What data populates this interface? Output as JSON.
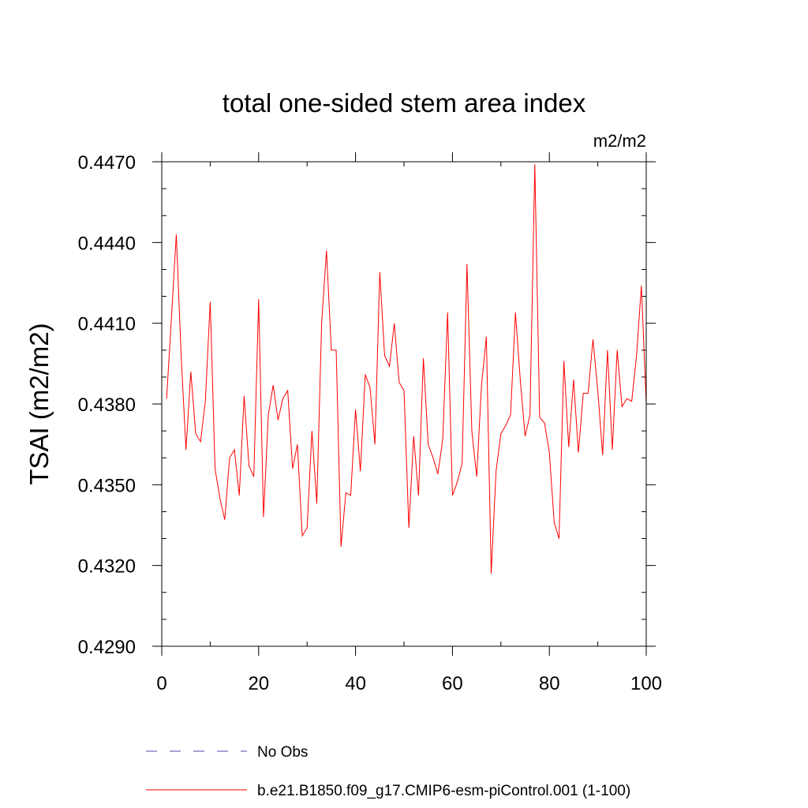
{
  "chart_data": {
    "type": "line",
    "title": "total one-sided stem area index",
    "units": "m2/m2",
    "ylabel": "TSAI  (m2/m2)",
    "xlabel": "",
    "xlim": [
      0,
      100
    ],
    "ylim": [
      0.429,
      0.447
    ],
    "xticks": [
      0,
      20,
      40,
      60,
      80,
      100
    ],
    "xtick_labels": [
      "0",
      "20",
      "40",
      "60",
      "80",
      "100"
    ],
    "yticks": [
      0.429,
      0.432,
      0.435,
      0.438,
      0.441,
      0.444,
      0.447
    ],
    "ytick_labels": [
      "0.4290",
      "0.4320",
      "0.4350",
      "0.4380",
      "0.4410",
      "0.4440",
      "0.4470"
    ],
    "series": [
      {
        "name": "b.e21.B1850.f09_g17.CMIP6-esm-piControl.001 (1-100)",
        "color": "#ff0000",
        "x": [
          1,
          2,
          3,
          4,
          5,
          6,
          7,
          8,
          9,
          10,
          11,
          12,
          13,
          14,
          15,
          16,
          17,
          18,
          19,
          20,
          21,
          22,
          23,
          24,
          25,
          26,
          27,
          28,
          29,
          30,
          31,
          32,
          33,
          34,
          35,
          36,
          37,
          38,
          39,
          40,
          41,
          42,
          43,
          44,
          45,
          46,
          47,
          48,
          49,
          50,
          51,
          52,
          53,
          54,
          55,
          56,
          57,
          58,
          59,
          60,
          61,
          62,
          63,
          64,
          65,
          66,
          67,
          68,
          69,
          70,
          71,
          72,
          73,
          74,
          75,
          76,
          77,
          78,
          79,
          80,
          81,
          82,
          83,
          84,
          85,
          86,
          87,
          88,
          89,
          90,
          91,
          92,
          93,
          94,
          95,
          96,
          97,
          98,
          99,
          100
        ],
        "values": [
          0.4382,
          0.4412,
          0.4443,
          0.4398,
          0.4363,
          0.4392,
          0.4369,
          0.4366,
          0.4381,
          0.4418,
          0.4356,
          0.4345,
          0.4337,
          0.436,
          0.4363,
          0.4346,
          0.4383,
          0.4357,
          0.4353,
          0.4419,
          0.4338,
          0.4376,
          0.4387,
          0.4374,
          0.4382,
          0.4385,
          0.4356,
          0.4365,
          0.4331,
          0.4334,
          0.437,
          0.4343,
          0.441,
          0.4437,
          0.44,
          0.44,
          0.4327,
          0.4347,
          0.4346,
          0.4378,
          0.4355,
          0.4391,
          0.4386,
          0.4365,
          0.4429,
          0.4398,
          0.4394,
          0.441,
          0.4388,
          0.4385,
          0.4334,
          0.4368,
          0.4346,
          0.4397,
          0.4365,
          0.436,
          0.4354,
          0.4367,
          0.4414,
          0.4346,
          0.4351,
          0.4358,
          0.4432,
          0.437,
          0.4353,
          0.4387,
          0.4405,
          0.4317,
          0.4355,
          0.4369,
          0.4372,
          0.4376,
          0.4414,
          0.4389,
          0.4368,
          0.4376,
          0.4469,
          0.4375,
          0.4373,
          0.4362,
          0.4336,
          0.433,
          0.4396,
          0.4364,
          0.4389,
          0.4362,
          0.4384,
          0.4384,
          0.4404,
          0.4385,
          0.4361,
          0.44,
          0.4363,
          0.44,
          0.4379,
          0.4382,
          0.4381,
          0.4398,
          0.4424,
          0.438
        ]
      }
    ],
    "legend": [
      {
        "label": "No Obs",
        "style": "dashed",
        "color": "#6d6dc2"
      },
      {
        "label": "b.e21.B1850.f09_g17.CMIP6-esm-piControl.001 (1-100)",
        "style": "solid",
        "color": "#ff0000"
      }
    ]
  }
}
